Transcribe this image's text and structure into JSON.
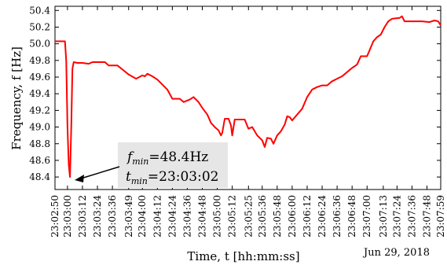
{
  "chart_data": {
    "type": "line",
    "xlabel": "Time, t [hh:mm:ss]",
    "ylabel": "Frequency, f [Hz]",
    "ylim": [
      48.25,
      50.45
    ],
    "y_ticks": [
      48.4,
      48.6,
      48.8,
      49.0,
      49.2,
      49.4,
      49.6,
      49.8,
      50.0,
      50.2,
      50.4
    ],
    "y_tick_labels": [
      "48.4",
      "48.6",
      "48.8",
      "49.0",
      "49.2",
      "49.4",
      "49.6",
      "49.8",
      "50.0",
      "50.2",
      "50.4"
    ],
    "x_range": [
      "23:02:50",
      "23:07:59"
    ],
    "x_ticks": [
      "23:02:50",
      "23:03:00",
      "23:03:12",
      "23:03:24",
      "23:03:36",
      "23:03:49",
      "23:04:00",
      "23:04:12",
      "23:04:24",
      "23:04:36",
      "23:04:48",
      "23:05:00",
      "23:05:12",
      "23:05:25",
      "23:05:36",
      "23:05:48",
      "23:06:00",
      "23:06:12",
      "23:06:24",
      "23:06:36",
      "23:06:48",
      "23:07:00",
      "23:07:13",
      "23:07:24",
      "23:07:36",
      "23:07:48",
      "23:07:59"
    ],
    "date_note": "Jun 29, 2018",
    "series": [
      {
        "color": "#ff0000",
        "points": [
          [
            "23:02:50",
            50.03
          ],
          [
            "23:02:58",
            50.03
          ],
          [
            "23:02:59",
            49.8
          ],
          [
            "23:03:00",
            49.0
          ],
          [
            "23:03:01",
            48.55
          ],
          [
            "23:03:02",
            48.4
          ],
          [
            "23:03:03",
            49.0
          ],
          [
            "23:03:04",
            49.7
          ],
          [
            "23:03:05",
            49.78
          ],
          [
            "23:03:08",
            49.77
          ],
          [
            "23:03:12",
            49.77
          ],
          [
            "23:03:17",
            49.76
          ],
          [
            "23:03:20",
            49.78
          ],
          [
            "23:03:30",
            49.78
          ],
          [
            "23:03:33",
            49.74
          ],
          [
            "23:03:40",
            49.74
          ],
          [
            "23:03:45",
            49.68
          ],
          [
            "23:03:49",
            49.63
          ],
          [
            "23:03:55",
            49.58
          ],
          [
            "23:04:00",
            49.62
          ],
          [
            "23:04:02",
            49.61
          ],
          [
            "23:04:04",
            49.64
          ],
          [
            "23:04:08",
            49.61
          ],
          [
            "23:04:12",
            49.57
          ],
          [
            "23:04:16",
            49.51
          ],
          [
            "23:04:20",
            49.45
          ],
          [
            "23:04:24",
            49.34
          ],
          [
            "23:04:30",
            49.34
          ],
          [
            "23:04:33",
            49.3
          ],
          [
            "23:04:38",
            49.33
          ],
          [
            "23:04:41",
            49.36
          ],
          [
            "23:04:45",
            49.3
          ],
          [
            "23:04:48",
            49.23
          ],
          [
            "23:04:52",
            49.15
          ],
          [
            "23:04:55",
            49.05
          ],
          [
            "23:04:58",
            49.0
          ],
          [
            "23:05:01",
            48.96
          ],
          [
            "23:05:03",
            48.9
          ],
          [
            "23:05:04",
            48.93
          ],
          [
            "23:05:06",
            49.1
          ],
          [
            "23:05:09",
            49.1
          ],
          [
            "23:05:11",
            49.02
          ],
          [
            "23:05:12",
            48.9
          ],
          [
            "23:05:14",
            49.09
          ],
          [
            "23:05:22",
            49.09
          ],
          [
            "23:05:25",
            48.98
          ],
          [
            "23:05:28",
            49.0
          ],
          [
            "23:05:32",
            48.9
          ],
          [
            "23:05:36",
            48.84
          ],
          [
            "23:05:38",
            48.76
          ],
          [
            "23:05:40",
            48.87
          ],
          [
            "23:05:43",
            48.86
          ],
          [
            "23:05:45",
            48.8
          ],
          [
            "23:05:48",
            48.9
          ],
          [
            "23:05:51",
            48.95
          ],
          [
            "23:05:54",
            49.03
          ],
          [
            "23:05:56",
            49.13
          ],
          [
            "23:05:58",
            49.12
          ],
          [
            "23:06:00",
            49.08
          ],
          [
            "23:06:04",
            49.15
          ],
          [
            "23:06:08",
            49.22
          ],
          [
            "23:06:12",
            49.36
          ],
          [
            "23:06:16",
            49.45
          ],
          [
            "23:06:20",
            49.48
          ],
          [
            "23:06:24",
            49.5
          ],
          [
            "23:06:28",
            49.5
          ],
          [
            "23:06:32",
            49.55
          ],
          [
            "23:06:36",
            49.58
          ],
          [
            "23:06:40",
            49.61
          ],
          [
            "23:06:44",
            49.66
          ],
          [
            "23:06:48",
            49.71
          ],
          [
            "23:06:52",
            49.75
          ],
          [
            "23:06:55",
            49.85
          ],
          [
            "23:07:00",
            49.85
          ],
          [
            "23:07:02",
            49.92
          ],
          [
            "23:07:05",
            50.03
          ],
          [
            "23:07:08",
            50.08
          ],
          [
            "23:07:11",
            50.11
          ],
          [
            "23:07:14",
            50.2
          ],
          [
            "23:07:17",
            50.27
          ],
          [
            "23:07:20",
            50.3
          ],
          [
            "23:07:26",
            50.31
          ],
          [
            "23:07:28",
            50.33
          ],
          [
            "23:07:30",
            50.27
          ],
          [
            "23:07:44",
            50.27
          ],
          [
            "23:07:50",
            50.26
          ],
          [
            "23:07:54",
            50.28
          ],
          [
            "23:07:57",
            50.27
          ],
          [
            "23:07:59",
            50.22
          ]
        ]
      }
    ],
    "annotation": {
      "line1_var": "f",
      "line1_sub": "min",
      "line1_val": "=48.4Hz",
      "line2_var": "t",
      "line2_sub": "min",
      "line2_val": "=23:03:02",
      "points_to": [
        "23:03:02",
        48.4
      ],
      "box_color": "#e6e6e6"
    }
  }
}
